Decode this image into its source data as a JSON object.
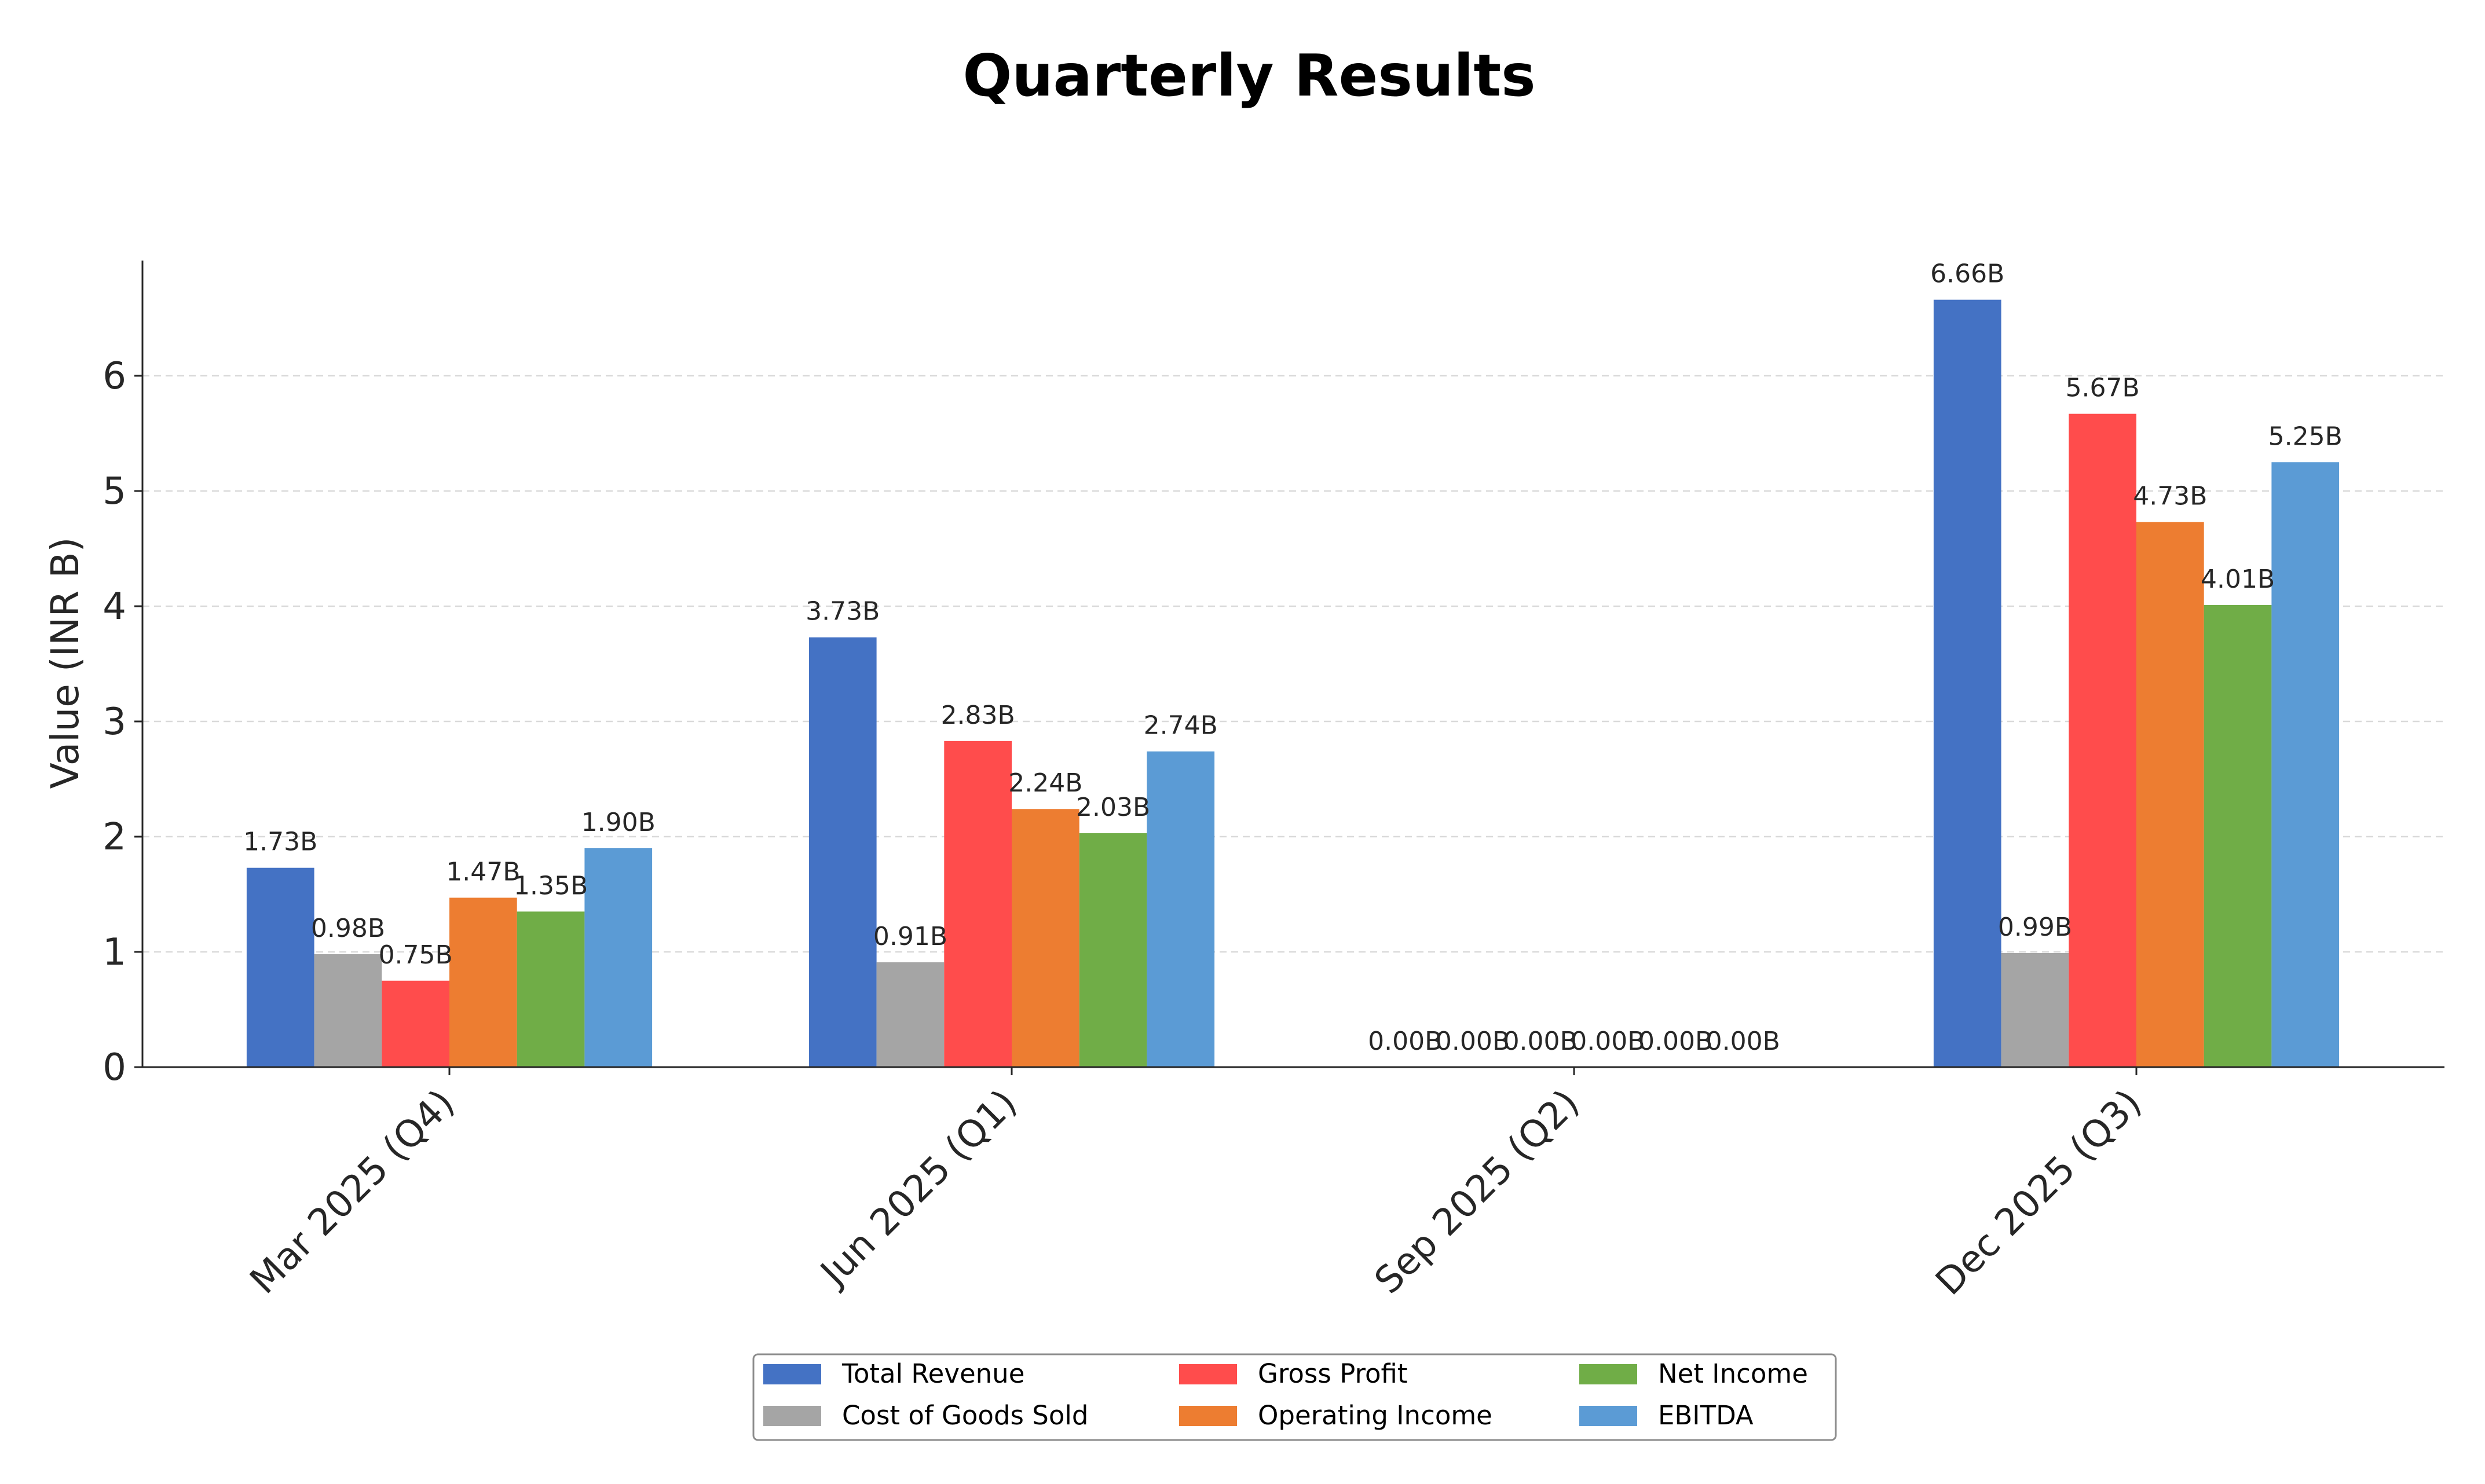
{
  "chart_data": {
    "type": "bar",
    "title": "Quarterly Results",
    "ylabel": "Value (INR B)",
    "xlabel": "",
    "ylim": [
      0,
      7
    ],
    "yticks": [
      0,
      1,
      2,
      3,
      4,
      5,
      6
    ],
    "grid": "y-dashed",
    "legend_position": "bottom-center",
    "categories": [
      "Mar 2025 (Q4)",
      "Jun 2025 (Q1)",
      "Sep 2025 (Q2)",
      "Dec 2025 (Q3)"
    ],
    "series": [
      {
        "name": "Total Revenue",
        "color": "#4472C4",
        "values": [
          1.73,
          3.73,
          0.0,
          6.66
        ],
        "labels": [
          "1.73B",
          "3.73B",
          "0.00B",
          "6.66B"
        ]
      },
      {
        "name": "Cost of Goods Sold",
        "color": "#A5A5A5",
        "values": [
          0.98,
          0.91,
          0.0,
          0.99
        ],
        "labels": [
          "0.98B",
          "0.91B",
          "0.00B",
          "0.99B"
        ]
      },
      {
        "name": "Gross Profit",
        "color": "#FF4C4C",
        "values": [
          0.75,
          2.83,
          0.0,
          5.67
        ],
        "labels": [
          "0.75B",
          "2.83B",
          "0.00B",
          "5.67B"
        ]
      },
      {
        "name": "Operating Income",
        "color": "#ED7D31",
        "values": [
          1.47,
          2.24,
          0.0,
          4.73
        ],
        "labels": [
          "1.47B",
          "2.24B",
          "0.00B",
          "4.73B"
        ]
      },
      {
        "name": "Net Income",
        "color": "#70AD47",
        "values": [
          1.35,
          2.03,
          0.0,
          4.01
        ],
        "labels": [
          "1.35B",
          "2.03B",
          "0.00B",
          "4.01B"
        ]
      },
      {
        "name": "EBITDA",
        "color": "#5B9BD5",
        "values": [
          1.9,
          2.74,
          0.0,
          5.25
        ],
        "labels": [
          "1.90B",
          "2.74B",
          "0.00B",
          "5.25B"
        ]
      }
    ]
  }
}
